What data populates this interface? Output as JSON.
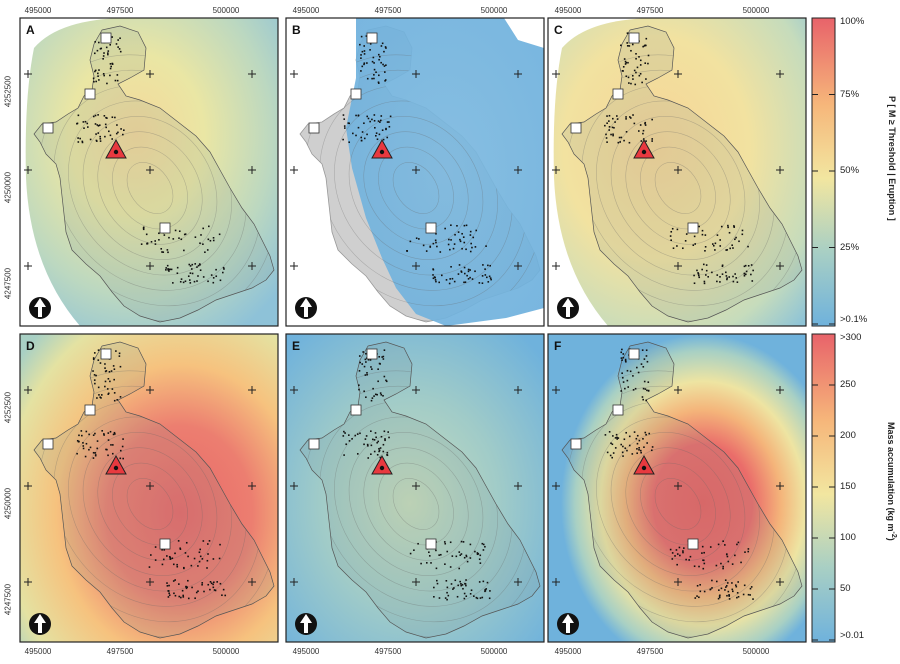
{
  "panels": [
    {
      "id": "A",
      "label": "A"
    },
    {
      "id": "B",
      "label": "B"
    },
    {
      "id": "C",
      "label": "C"
    },
    {
      "id": "D",
      "label": "D"
    },
    {
      "id": "E",
      "label": "E"
    },
    {
      "id": "F",
      "label": "F"
    }
  ],
  "x_ticks": [
    "495000",
    "497500",
    "500000"
  ],
  "y_ticks": [
    "4252500",
    "4250000",
    "4247500"
  ],
  "colorbar_top": {
    "title": "P [ M ≥ Threshold | Eruption ]",
    "ticks": [
      "100%",
      "75%",
      "50%",
      "25%",
      ">0.1%"
    ],
    "colors": [
      "#e8636a",
      "#f6b67a",
      "#f2e6a0",
      "#a8cfc4",
      "#6fb2dc"
    ]
  },
  "colorbar_bottom": {
    "title_main": "Mass accumulation (kg m",
    "title_sup": "-2",
    "title_end": ")",
    "ticks": [
      ">300",
      "250",
      "200",
      "150",
      "100",
      "50",
      ">0.01"
    ],
    "colors": [
      "#e8636a",
      "#f6b67a",
      "#f2e6a0",
      "#a8cfc4",
      "#6fb2dc"
    ]
  },
  "symbols": {
    "vent": "red-triangle-vent-icon",
    "station": "white-square-site-icon",
    "north": "north-arrow-icon"
  }
}
